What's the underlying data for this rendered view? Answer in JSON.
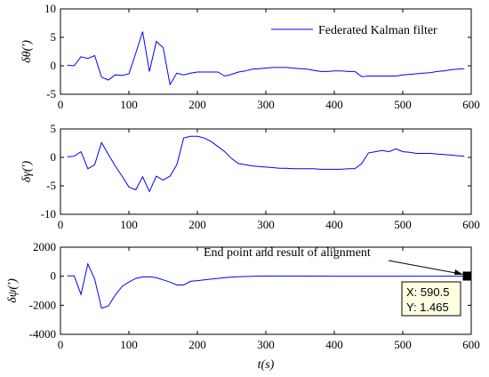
{
  "chart_data": [
    {
      "type": "line",
      "ylabel": "δθ(′)",
      "xlim": [
        0,
        600
      ],
      "ylim": [
        -5,
        10
      ],
      "xticks": [
        "0",
        "100",
        "200",
        "300",
        "400",
        "500",
        "600"
      ],
      "yticks": [
        "-5",
        "0",
        "5",
        "10"
      ],
      "legend": {
        "position": "top-right",
        "entries": [
          "Federated Kalman filter"
        ]
      },
      "series": [
        {
          "name": "Federated Kalman filter",
          "color": "#0000ff",
          "x": [
            10,
            20,
            30,
            40,
            50,
            60,
            70,
            80,
            90,
            100,
            110,
            120,
            130,
            140,
            150,
            160,
            170,
            180,
            190,
            200,
            210,
            220,
            230,
            240,
            250,
            260,
            270,
            280,
            290,
            300,
            310,
            320,
            330,
            340,
            350,
            360,
            370,
            380,
            390,
            400,
            410,
            420,
            430,
            440,
            450,
            460,
            470,
            480,
            490,
            500,
            510,
            520,
            530,
            540,
            550,
            560,
            570,
            580,
            590
          ],
          "y": [
            0.1,
            0.0,
            1.6,
            1.3,
            1.8,
            -2.0,
            -2.5,
            -1.6,
            -1.7,
            -1.4,
            2.2,
            6.0,
            -1.0,
            4.3,
            3.2,
            -3.3,
            -1.3,
            -1.6,
            -1.3,
            -1.1,
            -1.1,
            -1.1,
            -1.1,
            -1.8,
            -1.5,
            -1.1,
            -0.9,
            -0.6,
            -0.5,
            -0.4,
            -0.3,
            -0.3,
            -0.3,
            -0.4,
            -0.5,
            -0.6,
            -0.8,
            -1.0,
            -1.0,
            -0.9,
            -0.9,
            -1.0,
            -1.0,
            -1.9,
            -1.8,
            -1.8,
            -1.8,
            -1.8,
            -1.8,
            -1.6,
            -1.5,
            -1.4,
            -1.3,
            -1.2,
            -1.0,
            -0.9,
            -0.7,
            -0.6,
            -0.5
          ]
        }
      ]
    },
    {
      "type": "line",
      "ylabel": "δγ(′)",
      "xlim": [
        0,
        600
      ],
      "ylim": [
        -10,
        5
      ],
      "xticks": [
        "0",
        "100",
        "200",
        "300",
        "400",
        "500",
        "600"
      ],
      "yticks": [
        "-10",
        "-5",
        "0",
        "5"
      ],
      "series": [
        {
          "color": "#0000ff",
          "x": [
            10,
            20,
            30,
            40,
            50,
            60,
            70,
            80,
            90,
            100,
            110,
            120,
            130,
            140,
            150,
            160,
            170,
            180,
            190,
            200,
            210,
            220,
            230,
            240,
            250,
            260,
            270,
            280,
            290,
            300,
            310,
            320,
            330,
            340,
            350,
            360,
            370,
            380,
            390,
            400,
            410,
            420,
            430,
            440,
            450,
            460,
            470,
            480,
            490,
            500,
            510,
            520,
            530,
            540,
            550,
            560,
            570,
            580,
            590
          ],
          "y": [
            0.1,
            0.2,
            1.0,
            -2.0,
            -1.3,
            2.6,
            0.5,
            -1.5,
            -3.3,
            -5.2,
            -5.7,
            -3.4,
            -6.0,
            -3.3,
            -4.0,
            -3.3,
            -1.3,
            3.4,
            3.7,
            3.7,
            3.4,
            2.8,
            1.9,
            1.0,
            -0.2,
            -1.1,
            -1.3,
            -1.5,
            -1.6,
            -1.7,
            -1.8,
            -1.9,
            -1.9,
            -2.0,
            -2.0,
            -2.0,
            -2.0,
            -2.1,
            -2.1,
            -2.1,
            -2.1,
            -2.0,
            -2.0,
            -1.1,
            0.8,
            1.0,
            1.2,
            1.0,
            1.5,
            1.0,
            0.9,
            0.7,
            0.7,
            0.7,
            0.6,
            0.5,
            0.4,
            0.3,
            0.2
          ]
        }
      ]
    },
    {
      "type": "line",
      "ylabel": "δψ(′)",
      "xlabel": "t(s)",
      "xlim": [
        0,
        600
      ],
      "ylim": [
        -4000,
        2000
      ],
      "xticks": [
        "0",
        "100",
        "200",
        "300",
        "400",
        "500",
        "600"
      ],
      "yticks": [
        "-4000",
        "-2000",
        "0",
        "2000"
      ],
      "series": [
        {
          "color": "#0000ff",
          "x": [
            10,
            20,
            30,
            40,
            50,
            60,
            70,
            80,
            90,
            100,
            110,
            120,
            130,
            140,
            150,
            160,
            170,
            180,
            190,
            200,
            210,
            220,
            230,
            240,
            250,
            260,
            270,
            280,
            290,
            300,
            350,
            400,
            450,
            500,
            550,
            590
          ],
          "y": [
            20,
            30,
            -1250,
            850,
            -200,
            -2200,
            -2050,
            -1300,
            -700,
            -400,
            -150,
            -50,
            -30,
            -100,
            -250,
            -400,
            -600,
            -600,
            -350,
            -300,
            -250,
            -200,
            -150,
            -100,
            -60,
            -40,
            -20,
            0,
            10,
            10,
            10,
            5,
            5,
            3,
            2,
            1.465
          ]
        }
      ],
      "annotation": "End point and result of alignment",
      "datatip": {
        "x_label": "X: 590.5",
        "y_label": "Y: 1.465",
        "x": 590.5,
        "y": 1.465
      }
    }
  ]
}
